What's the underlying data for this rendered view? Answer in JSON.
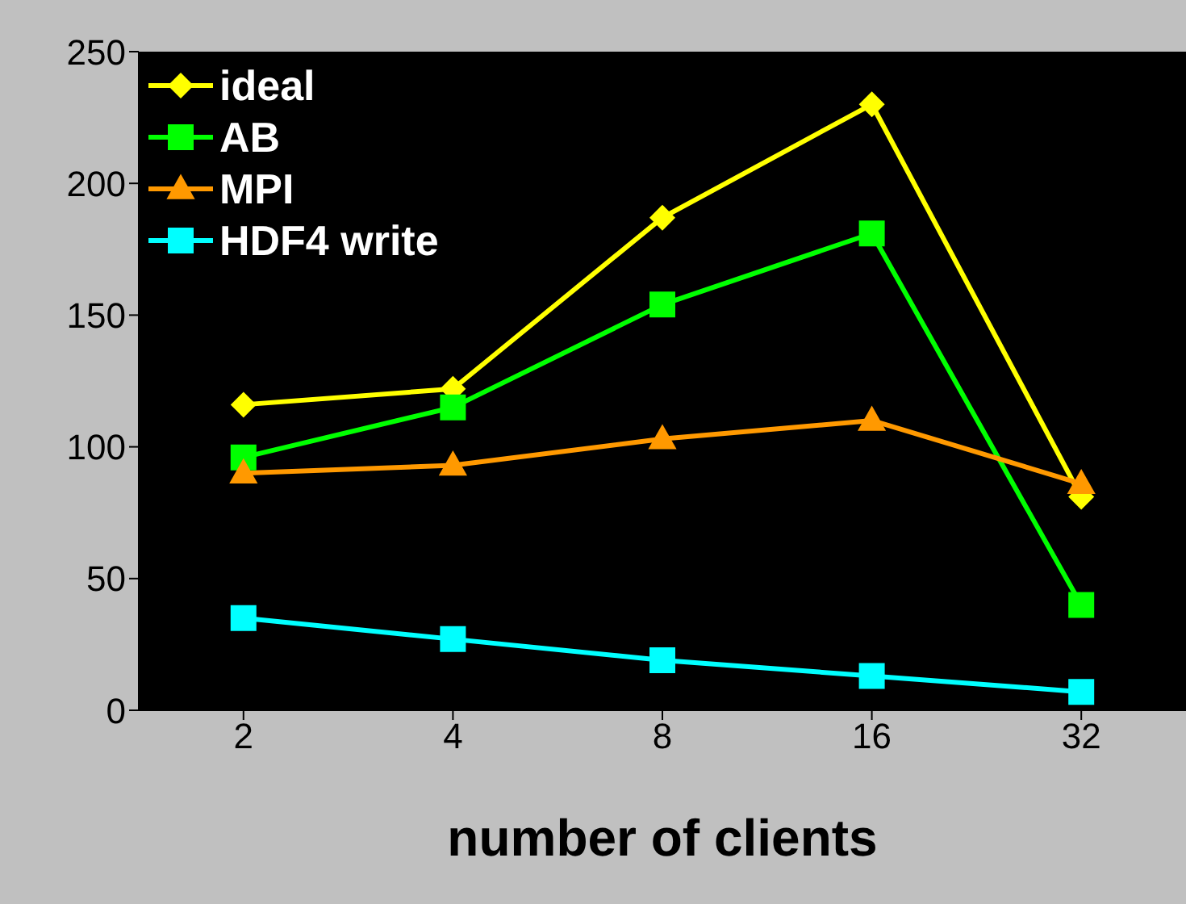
{
  "chart_data": {
    "type": "line",
    "xlabel": "number of clients",
    "categories": [
      "2",
      "4",
      "8",
      "16",
      "32"
    ],
    "series": [
      {
        "name": "ideal",
        "color": "#ffff00",
        "marker": "diamond",
        "values": [
          116,
          122,
          187,
          230,
          81
        ]
      },
      {
        "name": "AB",
        "color": "#00ff00",
        "marker": "square",
        "values": [
          96,
          115,
          154,
          181,
          40
        ]
      },
      {
        "name": "MPI",
        "color": "#ff9900",
        "marker": "triangle",
        "values": [
          90,
          93,
          103,
          110,
          86
        ]
      },
      {
        "name": "HDF4 write",
        "color": "#00ffff",
        "marker": "square",
        "values": [
          35,
          27,
          19,
          13,
          7
        ]
      }
    ],
    "ylim": [
      0,
      250
    ],
    "yticks": [
      0,
      50,
      100,
      150,
      200,
      250
    ],
    "legend": "top left",
    "grid": false
  }
}
